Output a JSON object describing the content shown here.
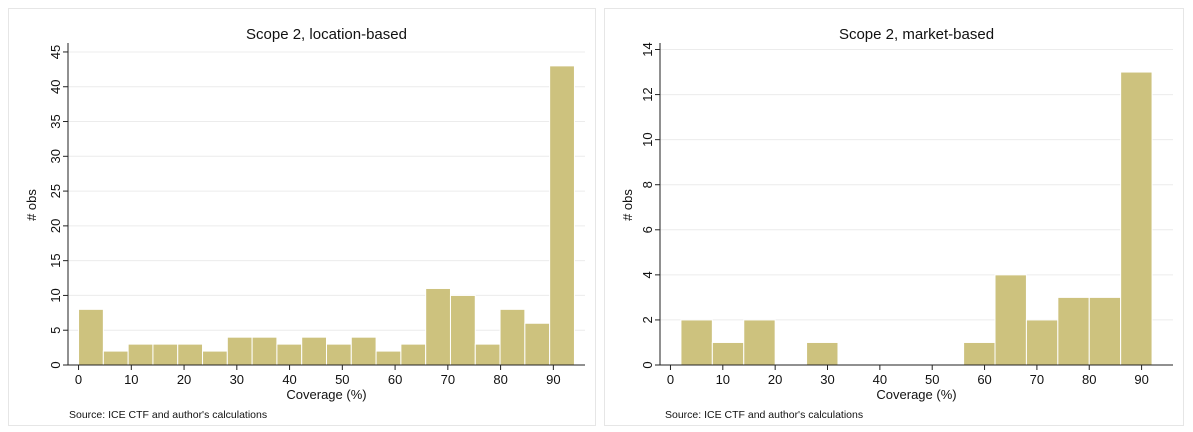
{
  "chart_data": [
    {
      "type": "bar",
      "title": "Scope 2, location-based",
      "xlabel": "Coverage (%)",
      "ylabel": "# obs",
      "note": "Source: ICE CTF and author's calculations",
      "bar_color": "#cdc27e",
      "grid": true,
      "xlim": [
        -2,
        96
      ],
      "ylim": [
        0,
        46
      ],
      "x_ticks": [
        0,
        10,
        20,
        30,
        40,
        50,
        60,
        70,
        80,
        90
      ],
      "y_ticks": [
        0,
        5,
        10,
        15,
        20,
        25,
        30,
        35,
        40,
        45
      ],
      "bin_width": 4.7,
      "bin_starts": [
        0,
        4.7,
        9.4,
        14.1,
        18.8,
        23.5,
        28.2,
        32.9,
        37.6,
        42.3,
        47.0,
        51.7,
        56.4,
        61.1,
        65.8,
        70.5,
        75.2,
        79.9,
        84.6,
        89.3
      ],
      "values": [
        8,
        2,
        3,
        3,
        3,
        2,
        4,
        4,
        3,
        4,
        3,
        4,
        2,
        3,
        11,
        10,
        3,
        8,
        6,
        43
      ]
    },
    {
      "type": "bar",
      "title": "Scope 2, market-based",
      "xlabel": "Coverage (%)",
      "ylabel": "# obs",
      "note": "Source: ICE CTF and author's calculations",
      "bar_color": "#cdc27e",
      "grid": true,
      "xlim": [
        -2,
        96
      ],
      "ylim": [
        0,
        14.2
      ],
      "x_ticks": [
        0,
        10,
        20,
        30,
        40,
        50,
        60,
        70,
        80,
        90
      ],
      "y_ticks": [
        0,
        2,
        4,
        6,
        8,
        10,
        12,
        14
      ],
      "bin_width": 6,
      "bin_starts": [
        2,
        8,
        14,
        20,
        26,
        32,
        38,
        44,
        50,
        56,
        62,
        68,
        74,
        80,
        86
      ],
      "values": [
        2,
        1,
        2,
        0,
        1,
        0,
        0,
        0,
        0,
        1,
        4,
        2,
        3,
        3,
        13
      ]
    }
  ]
}
